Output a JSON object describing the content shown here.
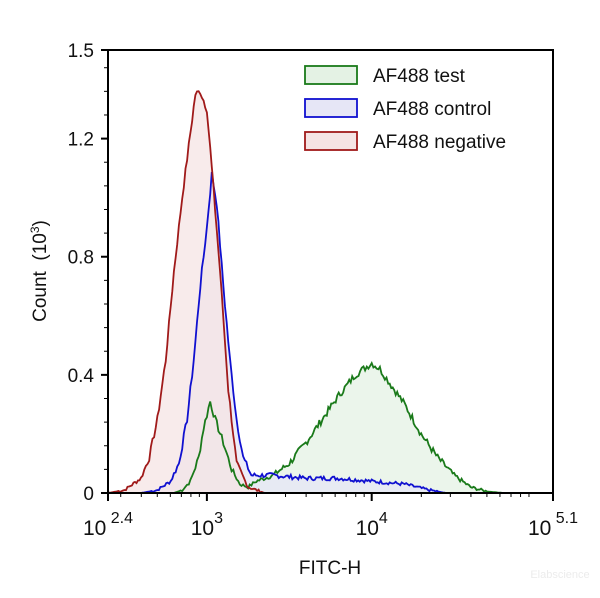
{
  "chart_data": {
    "type": "area",
    "xlabel": "FITC-H",
    "ylabel": "Count",
    "ylabel_unit": "(10",
    "ylabel_unit_exp": "3",
    "ylabel_unit_close": ")",
    "x_scale": "log10",
    "xlim_log10": [
      2.4,
      5.1
    ],
    "ylim": [
      0,
      1.5
    ],
    "x_ticks": [
      {
        "base": "10",
        "exp": "2.4",
        "log10": 2.4
      },
      {
        "base": "10",
        "exp": "3",
        "log10": 3
      },
      {
        "base": "10",
        "exp": "4",
        "log10": 4
      },
      {
        "base": "10",
        "exp": "5.1",
        "log10": 5.1
      }
    ],
    "y_ticks": [
      "0",
      "0.4",
      "0.8",
      "1.2",
      "1.5"
    ],
    "y_tick_values": [
      0,
      0.4,
      0.8,
      1.2,
      1.5
    ],
    "grid": false,
    "legend_position": "top-right",
    "series": [
      {
        "name": "AF488 test",
        "color": "#1a7a1a",
        "fill": "#e4f2e4",
        "points_log10x_y": [
          [
            2.8,
            0
          ],
          [
            2.85,
            0.01
          ],
          [
            2.9,
            0.04
          ],
          [
            2.95,
            0.12
          ],
          [
            2.98,
            0.22
          ],
          [
            3.02,
            0.31
          ],
          [
            3.05,
            0.25
          ],
          [
            3.1,
            0.17
          ],
          [
            3.15,
            0.08
          ],
          [
            3.2,
            0.03
          ],
          [
            3.25,
            0.02
          ],
          [
            3.3,
            0.04
          ],
          [
            3.4,
            0.06
          ],
          [
            3.5,
            0.1
          ],
          [
            3.6,
            0.17
          ],
          [
            3.7,
            0.25
          ],
          [
            3.8,
            0.33
          ],
          [
            3.9,
            0.4
          ],
          [
            3.95,
            0.42
          ],
          [
            4.0,
            0.44
          ],
          [
            4.05,
            0.42
          ],
          [
            4.1,
            0.38
          ],
          [
            4.2,
            0.3
          ],
          [
            4.3,
            0.2
          ],
          [
            4.4,
            0.12
          ],
          [
            4.5,
            0.06
          ],
          [
            4.6,
            0.02
          ],
          [
            4.7,
            0.005
          ],
          [
            4.8,
            0
          ]
        ]
      },
      {
        "name": "AF488 control",
        "color": "#1010d0",
        "fill": "#e6e6f6",
        "points_log10x_y": [
          [
            2.6,
            0
          ],
          [
            2.7,
            0.01
          ],
          [
            2.78,
            0.04
          ],
          [
            2.83,
            0.1
          ],
          [
            2.88,
            0.25
          ],
          [
            2.92,
            0.45
          ],
          [
            2.96,
            0.7
          ],
          [
            3.0,
            0.9
          ],
          [
            3.03,
            1.08
          ],
          [
            3.06,
            0.98
          ],
          [
            3.1,
            0.7
          ],
          [
            3.14,
            0.45
          ],
          [
            3.18,
            0.25
          ],
          [
            3.22,
            0.12
          ],
          [
            3.27,
            0.06
          ],
          [
            3.4,
            0.06
          ],
          [
            3.6,
            0.05
          ],
          [
            3.8,
            0.05
          ],
          [
            4.0,
            0.04
          ],
          [
            4.2,
            0.03
          ],
          [
            4.35,
            0.01
          ],
          [
            4.45,
            0
          ]
        ]
      },
      {
        "name": "AF488 negative",
        "color": "#a01a1a",
        "fill": "#f5e4e4",
        "points_log10x_y": [
          [
            2.4,
            0
          ],
          [
            2.5,
            0.01
          ],
          [
            2.6,
            0.05
          ],
          [
            2.65,
            0.12
          ],
          [
            2.7,
            0.25
          ],
          [
            2.75,
            0.45
          ],
          [
            2.8,
            0.75
          ],
          [
            2.85,
            1.0
          ],
          [
            2.9,
            1.22
          ],
          [
            2.93,
            1.35
          ],
          [
            2.96,
            1.36
          ],
          [
            3.0,
            1.3
          ],
          [
            3.03,
            1.1
          ],
          [
            3.08,
            0.75
          ],
          [
            3.13,
            0.35
          ],
          [
            3.18,
            0.1
          ],
          [
            3.25,
            0.02
          ],
          [
            3.35,
            0
          ]
        ]
      }
    ]
  },
  "watermark": "Elabscience"
}
